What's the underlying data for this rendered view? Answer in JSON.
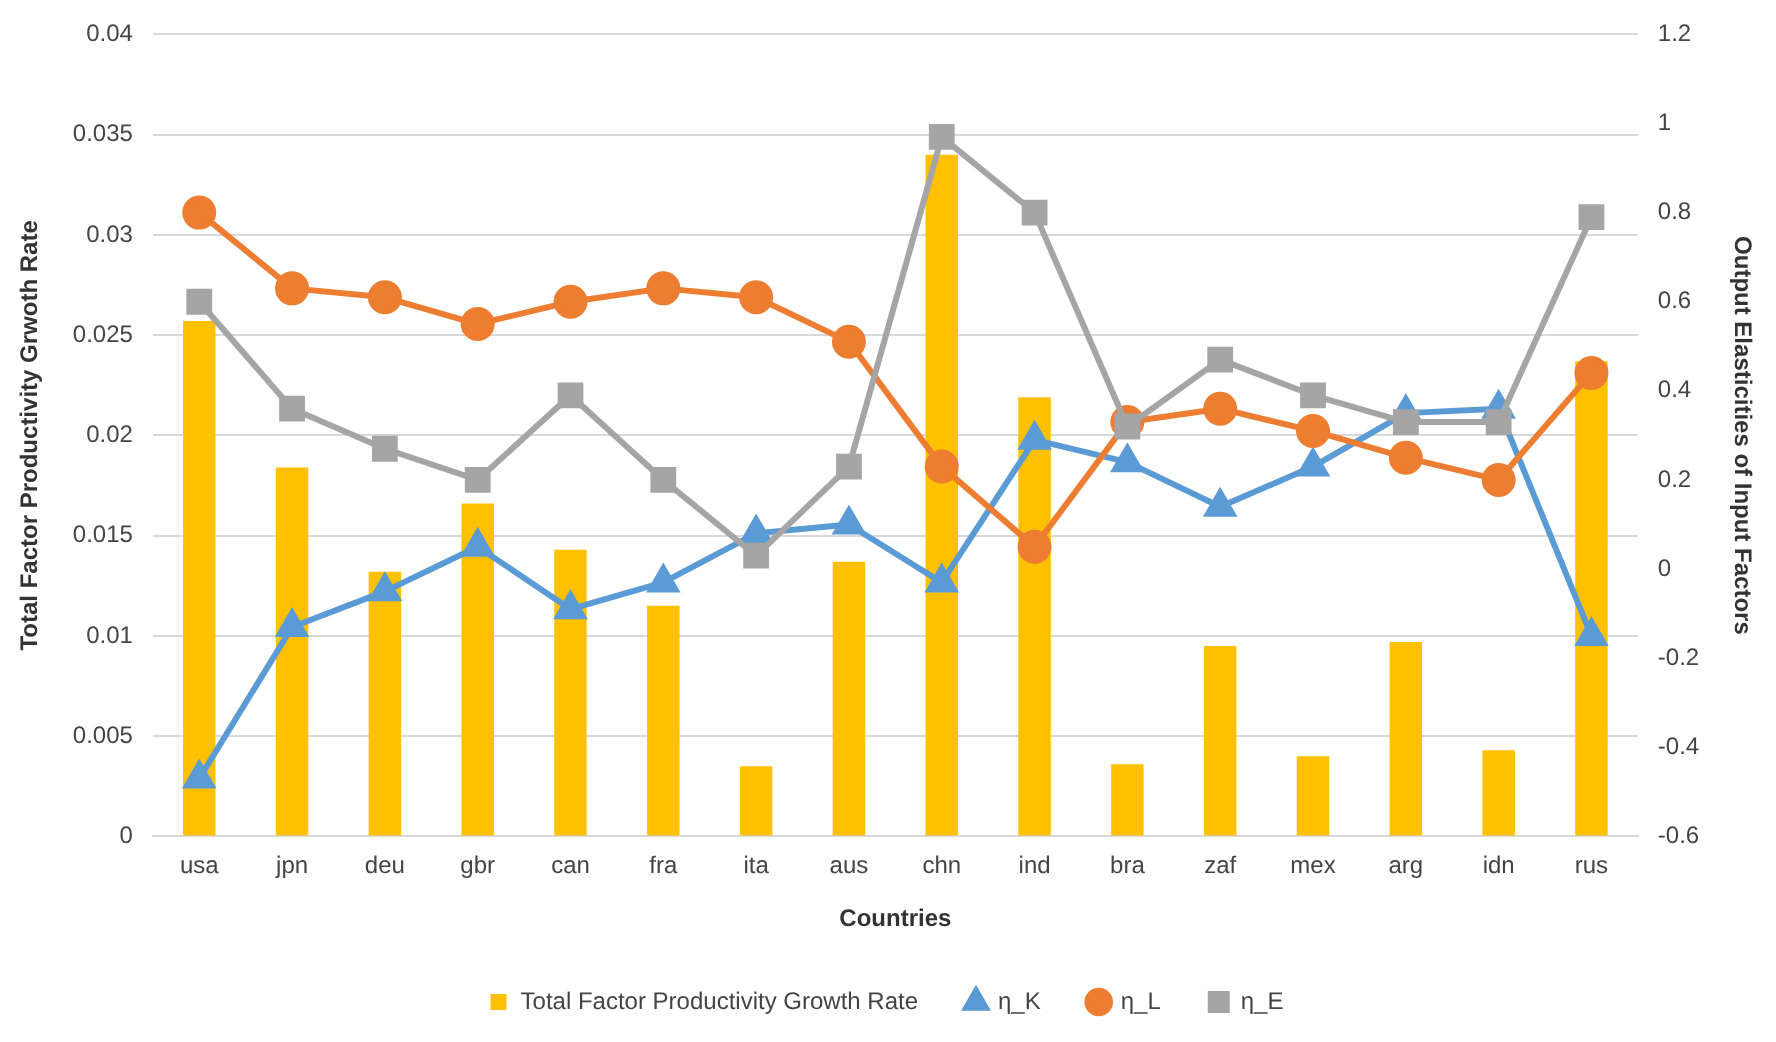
{
  "chart_data": {
    "type": "bar",
    "xlabel": "Countries",
    "ylabel": "Total Factor Productivity Grwoth Rate",
    "y2label": "Output Elasticities of Input Factors",
    "categories": [
      "usa",
      "jpn",
      "deu",
      "gbr",
      "can",
      "fra",
      "ita",
      "aus",
      "chn",
      "ind",
      "bra",
      "zaf",
      "mex",
      "arg",
      "idn",
      "rus"
    ],
    "series": [
      {
        "name": "Total Factor Productivity Growth Rate",
        "color": "#ffc000",
        "values": [
          0.0257,
          0.0184,
          0.0132,
          0.0166,
          0.0143,
          0.0115,
          0.0035,
          0.0137,
          0.034,
          0.0219,
          0.0036,
          0.0095,
          0.004,
          0.0097,
          0.0043,
          0.0237
        ]
      },
      {
        "name": "η_K",
        "type": "line",
        "axis": "y2",
        "marker": "triangle",
        "color": "#5b9bd5",
        "values": [
          -0.47,
          -0.13,
          -0.05,
          0.05,
          -0.09,
          -0.03,
          0.08,
          0.1,
          -0.03,
          0.29,
          0.24,
          0.14,
          0.23,
          0.35,
          0.36,
          -0.15
        ]
      },
      {
        "name": "η_L",
        "type": "line",
        "axis": "y2",
        "marker": "circle",
        "color": "#ed7d31",
        "values": [
          0.8,
          0.63,
          0.61,
          0.55,
          0.6,
          0.63,
          0.61,
          0.51,
          0.23,
          0.05,
          0.33,
          0.36,
          0.31,
          0.25,
          0.2,
          0.44
        ]
      },
      {
        "name": "η_E",
        "type": "line",
        "axis": "y2",
        "marker": "square",
        "color": "#a5a5a5",
        "values": [
          0.6,
          0.36,
          0.27,
          0.2,
          0.39,
          0.2,
          0.03,
          0.23,
          0.97,
          0.8,
          0.32,
          0.47,
          0.39,
          0.33,
          0.33,
          0.79
        ]
      }
    ],
    "ylim": [
      0,
      0.04
    ],
    "yticks": [
      0,
      0.005,
      0.01,
      0.015,
      0.02,
      0.025,
      0.03,
      0.035,
      0.04
    ],
    "y2lim": [
      -0.6,
      1.2
    ],
    "y2ticks": [
      -0.6,
      -0.4,
      -0.2,
      0,
      0.2,
      0.4,
      0.6,
      0.8,
      1,
      1.2
    ],
    "grid": "y",
    "legend": "bottom"
  }
}
